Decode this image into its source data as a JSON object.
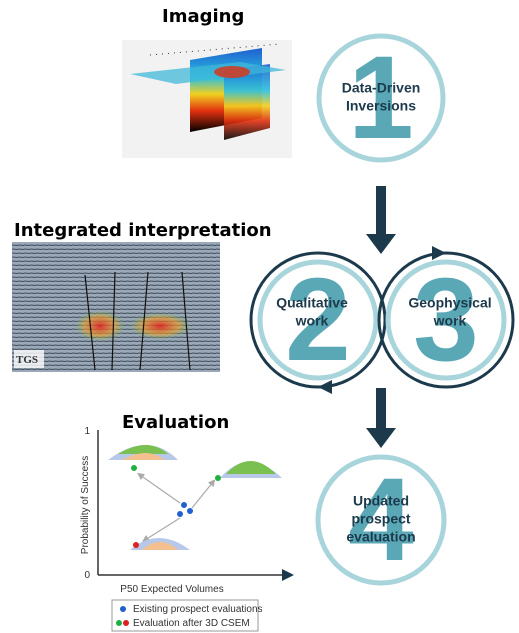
{
  "headings": {
    "imaging": "Imaging",
    "interpretation": "Integrated interpretation",
    "evaluation": "Evaluation"
  },
  "steps": [
    {
      "number": "1",
      "label": [
        "Data-Driven",
        "Inversions"
      ]
    },
    {
      "number": "2",
      "label": [
        "Qualitative",
        "work"
      ]
    },
    {
      "number": "3",
      "label": [
        "Geophysical",
        "work"
      ]
    },
    {
      "number": "4",
      "label": [
        "Updated",
        "prospect",
        "evaluation"
      ]
    }
  ],
  "logo": "TGS",
  "evaluation_chart": {
    "y_label": "Probability of Success",
    "x_label": "P50 Expected Volumes",
    "y_ticks": [
      "1",
      "0"
    ],
    "legend": [
      "Existing prospect evaluations",
      "Evaluation after 3D CSEM"
    ]
  }
}
